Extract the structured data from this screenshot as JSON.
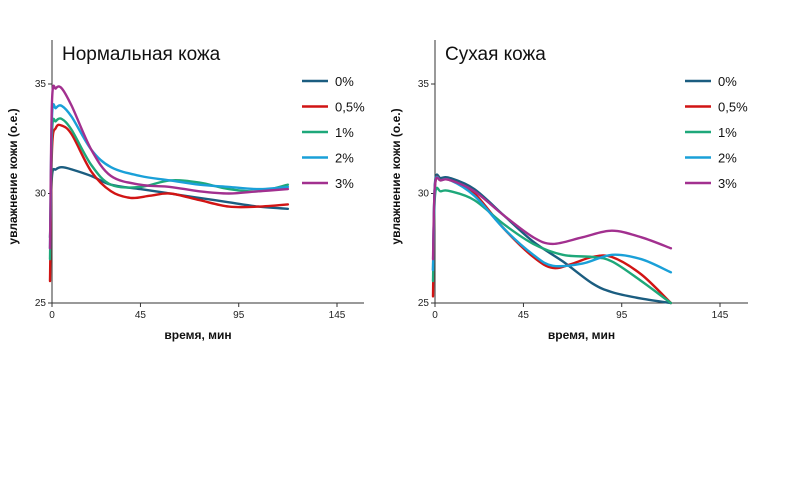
{
  "colors": {
    "0%": "#1b5d80",
    "0,5%": "#d11414",
    "1%": "#1ea87a",
    "2%": "#1aa0d8",
    "3%": "#a2308f"
  },
  "chart_data": [
    {
      "type": "line",
      "title": "Нормальная кожа",
      "xlabel": "время, мин",
      "ylabel": "увлажнение кожи (о.е.)",
      "xlim": [
        0,
        155
      ],
      "ylim": [
        25,
        36.5
      ],
      "xticks": [
        0,
        45,
        95,
        145
      ],
      "yticks": [
        25,
        30,
        35
      ],
      "legend_position": "top-right",
      "series": [
        {
          "name": "0%",
          "x": [
            -1,
            0,
            2,
            5,
            10,
            20,
            30,
            45,
            60,
            75,
            90,
            105,
            120
          ],
          "y": [
            28.0,
            30.8,
            31.1,
            31.2,
            31.1,
            30.8,
            30.4,
            30.2,
            30.0,
            29.8,
            29.6,
            29.4,
            29.3
          ]
        },
        {
          "name": "0,5%",
          "x": [
            -1,
            0,
            2,
            5,
            10,
            20,
            30,
            40,
            50,
            60,
            75,
            90,
            105,
            120
          ],
          "y": [
            26.0,
            32.0,
            33.0,
            33.1,
            32.7,
            31.0,
            30.1,
            29.8,
            29.9,
            30.0,
            29.7,
            29.4,
            29.4,
            29.5
          ]
        },
        {
          "name": "1%",
          "x": [
            -1,
            0,
            2,
            5,
            10,
            20,
            30,
            45,
            60,
            75,
            90,
            105,
            120
          ],
          "y": [
            27.0,
            32.8,
            33.3,
            33.4,
            32.9,
            31.3,
            30.4,
            30.3,
            30.6,
            30.5,
            30.2,
            30.1,
            30.4
          ]
        },
        {
          "name": "2%",
          "x": [
            -1,
            0,
            2,
            5,
            10,
            20,
            30,
            45,
            60,
            75,
            90,
            105,
            120
          ],
          "y": [
            27.5,
            33.5,
            33.9,
            34.0,
            33.5,
            32.0,
            31.2,
            30.8,
            30.6,
            30.4,
            30.3,
            30.2,
            30.3
          ]
        },
        {
          "name": "3%",
          "x": [
            -1,
            0,
            2,
            5,
            10,
            20,
            30,
            45,
            60,
            75,
            90,
            105,
            120
          ],
          "y": [
            27.5,
            34.2,
            34.8,
            34.8,
            34.0,
            32.0,
            30.8,
            30.4,
            30.3,
            30.1,
            30.0,
            30.1,
            30.2
          ]
        }
      ]
    },
    {
      "type": "line",
      "title": "Сухая кожа",
      "xlabel": "время, мин",
      "ylabel": "увлажнение кожи (о.е.)",
      "xlim": [
        0,
        155
      ],
      "ylim": [
        25,
        36.5
      ],
      "xticks": [
        0,
        45,
        95,
        145
      ],
      "yticks": [
        25,
        30,
        35
      ],
      "legend_position": "top-right",
      "series": [
        {
          "name": "0%",
          "x": [
            -1,
            0,
            3,
            8,
            20,
            35,
            50,
            65,
            80,
            90,
            105,
            120
          ],
          "y": [
            26.5,
            30.5,
            30.7,
            30.7,
            30.2,
            29.0,
            27.8,
            26.9,
            25.9,
            25.5,
            25.2,
            25.0
          ]
        },
        {
          "name": "0,5%",
          "x": [
            -1,
            0,
            3,
            8,
            20,
            35,
            50,
            60,
            70,
            80,
            90,
            105,
            120
          ],
          "y": [
            25.3,
            30.3,
            30.6,
            30.6,
            30.0,
            28.4,
            27.1,
            26.6,
            26.8,
            27.1,
            27.1,
            26.3,
            25.0
          ]
        },
        {
          "name": "1%",
          "x": [
            -1,
            0,
            3,
            8,
            20,
            35,
            50,
            65,
            80,
            90,
            105,
            120
          ],
          "y": [
            26.0,
            29.9,
            30.1,
            30.1,
            29.7,
            28.6,
            27.7,
            27.2,
            27.1,
            26.9,
            26.0,
            25.0
          ]
        },
        {
          "name": "2%",
          "x": [
            -1,
            0,
            3,
            8,
            20,
            35,
            50,
            60,
            75,
            90,
            105,
            120
          ],
          "y": [
            26.5,
            30.4,
            30.6,
            30.6,
            29.9,
            28.4,
            27.2,
            26.7,
            26.8,
            27.2,
            27.0,
            26.4
          ]
        },
        {
          "name": "3%",
          "x": [
            -1,
            0,
            3,
            8,
            20,
            35,
            50,
            60,
            75,
            90,
            105,
            120
          ],
          "y": [
            27.0,
            30.4,
            30.6,
            30.6,
            30.1,
            29.0,
            28.0,
            27.7,
            28.0,
            28.3,
            28.0,
            27.5
          ]
        }
      ]
    }
  ]
}
